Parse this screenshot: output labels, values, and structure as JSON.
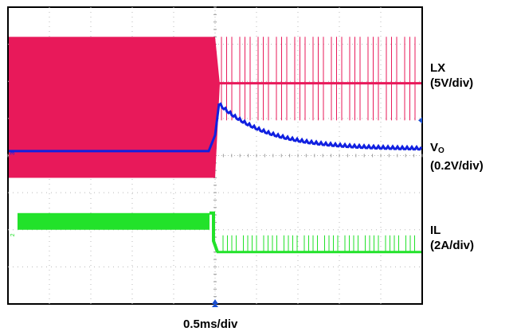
{
  "chart_data": {
    "type": "line",
    "title": "",
    "x_unit_label": "0.5ms/div",
    "x_divisions": 10,
    "y_divisions": 8,
    "grid": true,
    "channels": [
      {
        "name": "LX",
        "scale": "(5V/div)",
        "marker": "1",
        "color": "#e8195a",
        "level_div_from_top": 3.6,
        "description_values": {
          "before_switch_div": [
            0.8,
            4.6
          ],
          "after_switch_level_div": 2.05,
          "after_switch_spike_top_div": 0.8,
          "after_switch_spike_bottom_div": 3.05
        }
      },
      {
        "name": "V",
        "name_sub": "O",
        "scale": "(0.2V/div)",
        "marker": "3",
        "color": "#1020e0",
        "level_div_from_top": 3.9,
        "description_values": {
          "before_switch_level_div": 3.88,
          "peak_level_div": 2.6,
          "settled_level_div": 3.82
        }
      },
      {
        "name": "IL",
        "scale": "(2A/div)",
        "marker": "2",
        "color": "#22e22a",
        "level_div_from_top": 6.1,
        "description_values": {
          "before_switch_div": [
            5.55,
            6.0
          ],
          "after_switch_level_div": 6.6,
          "after_switch_spike_top_div": 6.15
        }
      }
    ],
    "switch_time_div": 5.0
  }
}
